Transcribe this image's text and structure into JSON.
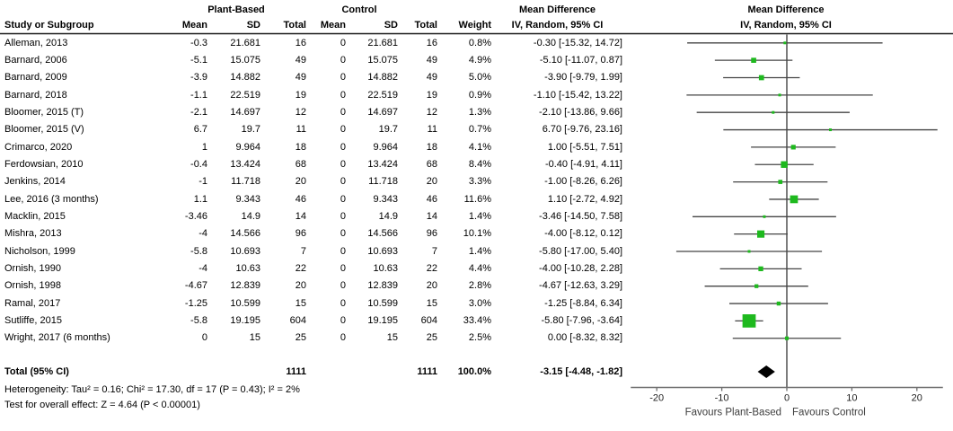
{
  "header": {
    "study_col": "Study or Subgroup",
    "group1": "Plant-Based",
    "group2": "Control",
    "md_text_title": "Mean Difference",
    "md_text_sub": "IV, Random, 95% CI",
    "md_plot_title": "Mean Difference",
    "md_plot_sub": "IV, Random, 95% CI",
    "cols": [
      "Mean",
      "SD",
      "Total",
      "Mean",
      "SD",
      "Total",
      "Weight"
    ]
  },
  "chart_data": {
    "type": "forest",
    "title": "Mean Difference, IV, Random, 95% CI",
    "studies": [
      {
        "label": "Alleman, 2013",
        "mean1": "-0.3",
        "sd1": "21.681",
        "n1": "16",
        "mean2": "0",
        "sd2": "21.681",
        "n2": "16",
        "weight": "0.8%",
        "w": 0.8,
        "ci_text": "-0.30 [-15.32, 14.72]",
        "est": -0.3,
        "lo": -15.32,
        "hi": 14.72
      },
      {
        "label": "Barnard, 2006",
        "mean1": "-5.1",
        "sd1": "15.075",
        "n1": "49",
        "mean2": "0",
        "sd2": "15.075",
        "n2": "49",
        "weight": "4.9%",
        "w": 4.9,
        "ci_text": "-5.10 [-11.07, 0.87]",
        "est": -5.1,
        "lo": -11.07,
        "hi": 0.87
      },
      {
        "label": "Barnard, 2009",
        "mean1": "-3.9",
        "sd1": "14.882",
        "n1": "49",
        "mean2": "0",
        "sd2": "14.882",
        "n2": "49",
        "weight": "5.0%",
        "w": 5.0,
        "ci_text": "-3.90 [-9.79, 1.99]",
        "est": -3.9,
        "lo": -9.79,
        "hi": 1.99
      },
      {
        "label": "Barnard, 2018",
        "mean1": "-1.1",
        "sd1": "22.519",
        "n1": "19",
        "mean2": "0",
        "sd2": "22.519",
        "n2": "19",
        "weight": "0.9%",
        "w": 0.9,
        "ci_text": "-1.10 [-15.42, 13.22]",
        "est": -1.1,
        "lo": -15.42,
        "hi": 13.22
      },
      {
        "label": "Bloomer, 2015 (T)",
        "mean1": "-2.1",
        "sd1": "14.697",
        "n1": "12",
        "mean2": "0",
        "sd2": "14.697",
        "n2": "12",
        "weight": "1.3%",
        "w": 1.3,
        "ci_text": "-2.10 [-13.86, 9.66]",
        "est": -2.1,
        "lo": -13.86,
        "hi": 9.66
      },
      {
        "label": "Bloomer, 2015 (V)",
        "mean1": "6.7",
        "sd1": "19.7",
        "n1": "11",
        "mean2": "0",
        "sd2": "19.7",
        "n2": "11",
        "weight": "0.7%",
        "w": 0.7,
        "ci_text": "6.70 [-9.76, 23.16]",
        "est": 6.7,
        "lo": -9.76,
        "hi": 23.16
      },
      {
        "label": "Crimarco, 2020",
        "mean1": "1",
        "sd1": "9.964",
        "n1": "18",
        "mean2": "0",
        "sd2": "9.964",
        "n2": "18",
        "weight": "4.1%",
        "w": 4.1,
        "ci_text": "1.00 [-5.51, 7.51]",
        "est": 1.0,
        "lo": -5.51,
        "hi": 7.51
      },
      {
        "label": "Ferdowsian, 2010",
        "mean1": "-0.4",
        "sd1": "13.424",
        "n1": "68",
        "mean2": "0",
        "sd2": "13.424",
        "n2": "68",
        "weight": "8.4%",
        "w": 8.4,
        "ci_text": "-0.40 [-4.91, 4.11]",
        "est": -0.4,
        "lo": -4.91,
        "hi": 4.11
      },
      {
        "label": "Jenkins, 2014",
        "mean1": "-1",
        "sd1": "11.718",
        "n1": "20",
        "mean2": "0",
        "sd2": "11.718",
        "n2": "20",
        "weight": "3.3%",
        "w": 3.3,
        "ci_text": "-1.00 [-8.26, 6.26]",
        "est": -1.0,
        "lo": -8.26,
        "hi": 6.26
      },
      {
        "label": "Lee, 2016 (3 months)",
        "mean1": "1.1",
        "sd1": "9.343",
        "n1": "46",
        "mean2": "0",
        "sd2": "9.343",
        "n2": "46",
        "weight": "11.6%",
        "w": 11.6,
        "ci_text": "1.10 [-2.72, 4.92]",
        "est": 1.1,
        "lo": -2.72,
        "hi": 4.92
      },
      {
        "label": "Macklin, 2015",
        "mean1": "-3.46",
        "sd1": "14.9",
        "n1": "14",
        "mean2": "0",
        "sd2": "14.9",
        "n2": "14",
        "weight": "1.4%",
        "w": 1.4,
        "ci_text": "-3.46 [-14.50, 7.58]",
        "est": -3.46,
        "lo": -14.5,
        "hi": 7.58
      },
      {
        "label": "Mishra, 2013",
        "mean1": "-4",
        "sd1": "14.566",
        "n1": "96",
        "mean2": "0",
        "sd2": "14.566",
        "n2": "96",
        "weight": "10.1%",
        "w": 10.1,
        "ci_text": "-4.00 [-8.12, 0.12]",
        "est": -4.0,
        "lo": -8.12,
        "hi": 0.12
      },
      {
        "label": "Nicholson, 1999",
        "mean1": "-5.8",
        "sd1": "10.693",
        "n1": "7",
        "mean2": "0",
        "sd2": "10.693",
        "n2": "7",
        "weight": "1.4%",
        "w": 1.4,
        "ci_text": "-5.80 [-17.00, 5.40]",
        "est": -5.8,
        "lo": -17.0,
        "hi": 5.4
      },
      {
        "label": "Ornish, 1990",
        "mean1": "-4",
        "sd1": "10.63",
        "n1": "22",
        "mean2": "0",
        "sd2": "10.63",
        "n2": "22",
        "weight": "4.4%",
        "w": 4.4,
        "ci_text": "-4.00 [-10.28, 2.28]",
        "est": -4.0,
        "lo": -10.28,
        "hi": 2.28
      },
      {
        "label": "Ornish, 1998",
        "mean1": "-4.67",
        "sd1": "12.839",
        "n1": "20",
        "mean2": "0",
        "sd2": "12.839",
        "n2": "20",
        "weight": "2.8%",
        "w": 2.8,
        "ci_text": "-4.67 [-12.63, 3.29]",
        "est": -4.67,
        "lo": -12.63,
        "hi": 3.29
      },
      {
        "label": "Ramal, 2017",
        "mean1": "-1.25",
        "sd1": "10.599",
        "n1": "15",
        "mean2": "0",
        "sd2": "10.599",
        "n2": "15",
        "weight": "3.0%",
        "w": 3.0,
        "ci_text": "-1.25 [-8.84, 6.34]",
        "est": -1.25,
        "lo": -8.84,
        "hi": 6.34
      },
      {
        "label": "Sutliffe, 2015",
        "mean1": "-5.8",
        "sd1": "19.195",
        "n1": "604",
        "mean2": "0",
        "sd2": "19.195",
        "n2": "604",
        "weight": "33.4%",
        "w": 33.4,
        "ci_text": "-5.80 [-7.96, -3.64]",
        "est": -5.8,
        "lo": -7.96,
        "hi": -3.64
      },
      {
        "label": "Wright, 2017 (6 months)",
        "mean1": "0",
        "sd1": "15",
        "n1": "25",
        "mean2": "0",
        "sd2": "15",
        "n2": "25",
        "weight": "2.5%",
        "w": 2.5,
        "ci_text": "0.00 [-8.32, 8.32]",
        "est": 0.0,
        "lo": -8.32,
        "hi": 8.32
      }
    ],
    "total": {
      "label": "Total (95% CI)",
      "n1": "1111",
      "n2": "1111",
      "weight": "100.0%",
      "ci_text": "-3.15 [-4.48, -1.82]",
      "est": -3.15,
      "lo": -4.48,
      "hi": -1.82
    },
    "footer": [
      "Heterogeneity: Tau² = 0.16; Chi² = 17.30, df = 17 (P = 0.43); I² = 2%",
      "Test for overall effect: Z = 4.64 (P < 0.00001)"
    ],
    "axis": {
      "ticks": [
        -20,
        -10,
        0,
        10,
        20
      ],
      "min": -24,
      "max": 24,
      "favours_left": "Favours Plant-Based",
      "favours_right": "Favours Control"
    },
    "colors": {
      "marker_green": "#1eb91e",
      "diamond": "#000000",
      "ci_line": "#454545",
      "axis_line": "#6e6e6e",
      "separator": "#1a1a1a"
    }
  }
}
